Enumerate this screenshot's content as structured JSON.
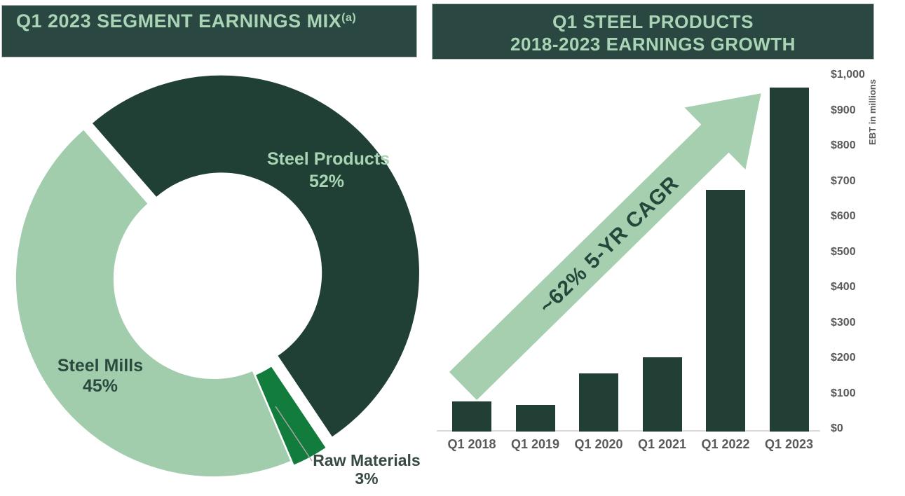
{
  "left_panel": {
    "title": "Q1 2023 SEGMENT EARNINGS MIX",
    "title_superscript": "(a)",
    "donut": {
      "segments": [
        {
          "name": "steel-products",
          "label": "Steel Products",
          "pct_label": "52%",
          "value": 52,
          "color": "#204036"
        },
        {
          "name": "raw-materials",
          "label": "Raw Materials",
          "pct_label": "3%",
          "value": 3,
          "color": "#117c3c"
        },
        {
          "name": "steel-mills",
          "label": "Steel Mills",
          "pct_label": "45%",
          "value": 45,
          "color": "#a2cdad"
        }
      ]
    }
  },
  "right_panel": {
    "title_line1": "Q1 STEEL PRODUCTS",
    "title_line2": "2018-2023 EARNINGS GROWTH",
    "arrow_annotation": "~62% 5-YR CAGR",
    "y_axis_title": "EBT in millions",
    "y_tick_labels": [
      "$1,000",
      "$900",
      "$800",
      "$700",
      "$600",
      "$500",
      "$400",
      "$300",
      "$200",
      "$100",
      "$0"
    ],
    "categories": [
      "Q1 2018",
      "Q1 2019",
      "Q1 2020",
      "Q1 2021",
      "Q1 2022",
      "Q1 2023"
    ],
    "values": [
      85,
      75,
      165,
      210,
      685,
      975
    ]
  },
  "chart_data": [
    {
      "type": "pie",
      "subtype": "donut",
      "title": "Q1 2023 SEGMENT EARNINGS MIX(a)",
      "labels": [
        "Steel Products",
        "Steel Mills",
        "Raw Materials"
      ],
      "values": [
        52,
        45,
        3
      ],
      "unit": "percent",
      "colors": [
        "#204036",
        "#a2cdad",
        "#117c3c"
      ],
      "legend_position": "on-slice-labels"
    },
    {
      "type": "bar",
      "title": "Q1 STEEL PRODUCTS 2018-2023 EARNINGS GROWTH",
      "categories": [
        "Q1 2018",
        "Q1 2019",
        "Q1 2020",
        "Q1 2021",
        "Q1 2022",
        "Q1 2023"
      ],
      "values": [
        85,
        75,
        165,
        210,
        685,
        975
      ],
      "xlabel": "",
      "ylabel": "EBT in millions",
      "ylim": [
        0,
        1000
      ],
      "ytick_step": 100,
      "grid": false,
      "annotation": "~62% 5-YR CAGR",
      "bar_color": "#223f36"
    }
  ],
  "colors": {
    "banner_bg": "#2a4841",
    "banner_text": "#a9d4b6",
    "dark_green": "#204036",
    "light_green": "#a2cdad",
    "arrow_green": "#a5cfae",
    "kelly_green": "#117c3c",
    "axis_text": "#595959",
    "axis_line": "#d9d9d9",
    "leader_line": "#a6a6a6"
  }
}
